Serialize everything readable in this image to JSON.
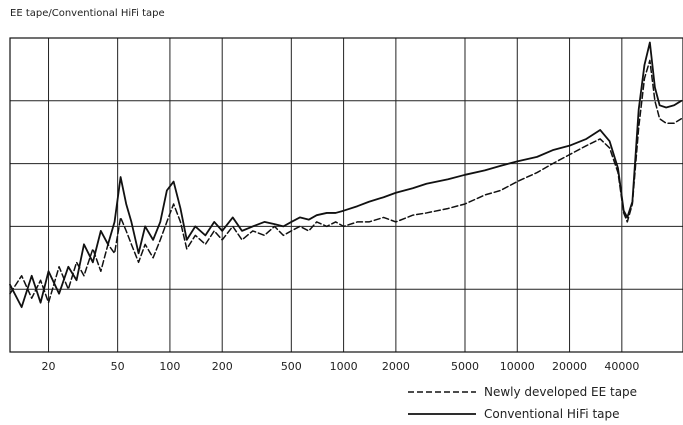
{
  "chart_data": {
    "type": "line",
    "title": "EE tape/Conventional HiFi tape",
    "xlabel": "",
    "ylabel": "",
    "x_scale": "log",
    "xlim": [
      12,
      90000
    ],
    "ylim": [
      0,
      7
    ],
    "grid": true,
    "x_tick_labels": [
      "20",
      "50",
      "100",
      "200",
      "500",
      "1000",
      "2000",
      "5000",
      "10000",
      "20000",
      "40000"
    ],
    "x_ticks": [
      20,
      50,
      100,
      200,
      500,
      1000,
      2000,
      5000,
      10000,
      20000,
      40000
    ],
    "legend_position": "bottom-right",
    "series": [
      {
        "name": "Newly developed EE tape",
        "style": "dashed",
        "color": "#111111",
        "points": [
          [
            12,
            1.3
          ],
          [
            14,
            1.7
          ],
          [
            16,
            1.2
          ],
          [
            18,
            1.6
          ],
          [
            20,
            1.1
          ],
          [
            23,
            1.9
          ],
          [
            26,
            1.4
          ],
          [
            29,
            2.0
          ],
          [
            32,
            1.7
          ],
          [
            36,
            2.3
          ],
          [
            40,
            1.8
          ],
          [
            44,
            2.4
          ],
          [
            48,
            2.2
          ],
          [
            52,
            3.0
          ],
          [
            56,
            2.7
          ],
          [
            60,
            2.4
          ],
          [
            66,
            2.0
          ],
          [
            72,
            2.4
          ],
          [
            80,
            2.1
          ],
          [
            88,
            2.5
          ],
          [
            96,
            2.9
          ],
          [
            105,
            3.3
          ],
          [
            115,
            2.9
          ],
          [
            125,
            2.3
          ],
          [
            140,
            2.6
          ],
          [
            160,
            2.4
          ],
          [
            180,
            2.7
          ],
          [
            200,
            2.5
          ],
          [
            230,
            2.8
          ],
          [
            260,
            2.5
          ],
          [
            300,
            2.7
          ],
          [
            350,
            2.6
          ],
          [
            400,
            2.8
          ],
          [
            450,
            2.6
          ],
          [
            500,
            2.7
          ],
          [
            560,
            2.8
          ],
          [
            630,
            2.7
          ],
          [
            700,
            2.9
          ],
          [
            800,
            2.8
          ],
          [
            900,
            2.9
          ],
          [
            1000,
            2.8
          ],
          [
            1200,
            2.9
          ],
          [
            1400,
            2.9
          ],
          [
            1700,
            3.0
          ],
          [
            2000,
            2.9
          ],
          [
            2500,
            3.05
          ],
          [
            3000,
            3.1
          ],
          [
            4000,
            3.2
          ],
          [
            5000,
            3.3
          ],
          [
            6500,
            3.5
          ],
          [
            8000,
            3.6
          ],
          [
            10000,
            3.8
          ],
          [
            13000,
            4.0
          ],
          [
            16000,
            4.2
          ],
          [
            20000,
            4.4
          ],
          [
            25000,
            4.6
          ],
          [
            30000,
            4.75
          ],
          [
            34000,
            4.55
          ],
          [
            38000,
            4.0
          ],
          [
            41000,
            3.1
          ],
          [
            43000,
            2.9
          ],
          [
            46000,
            3.3
          ],
          [
            50000,
            5.0
          ],
          [
            54000,
            6.1
          ],
          [
            58000,
            6.5
          ],
          [
            62000,
            5.6
          ],
          [
            66000,
            5.2
          ],
          [
            72000,
            5.1
          ],
          [
            80000,
            5.1
          ],
          [
            88000,
            5.2
          ]
        ]
      },
      {
        "name": "Conventional HiFi tape",
        "style": "solid",
        "color": "#111111",
        "points": [
          [
            12,
            1.5
          ],
          [
            14,
            1.0
          ],
          [
            16,
            1.7
          ],
          [
            18,
            1.1
          ],
          [
            20,
            1.8
          ],
          [
            23,
            1.3
          ],
          [
            26,
            1.9
          ],
          [
            29,
            1.6
          ],
          [
            32,
            2.4
          ],
          [
            36,
            2.0
          ],
          [
            40,
            2.7
          ],
          [
            44,
            2.4
          ],
          [
            48,
            2.9
          ],
          [
            52,
            3.9
          ],
          [
            56,
            3.3
          ],
          [
            60,
            2.9
          ],
          [
            66,
            2.2
          ],
          [
            72,
            2.8
          ],
          [
            80,
            2.5
          ],
          [
            88,
            2.9
          ],
          [
            96,
            3.6
          ],
          [
            105,
            3.8
          ],
          [
            115,
            3.2
          ],
          [
            125,
            2.5
          ],
          [
            140,
            2.8
          ],
          [
            160,
            2.6
          ],
          [
            180,
            2.9
          ],
          [
            200,
            2.7
          ],
          [
            230,
            3.0
          ],
          [
            260,
            2.7
          ],
          [
            300,
            2.8
          ],
          [
            350,
            2.9
          ],
          [
            400,
            2.85
          ],
          [
            450,
            2.8
          ],
          [
            500,
            2.9
          ],
          [
            560,
            3.0
          ],
          [
            630,
            2.95
          ],
          [
            700,
            3.05
          ],
          [
            800,
            3.1
          ],
          [
            900,
            3.1
          ],
          [
            1000,
            3.15
          ],
          [
            1200,
            3.25
          ],
          [
            1400,
            3.35
          ],
          [
            1700,
            3.45
          ],
          [
            2000,
            3.55
          ],
          [
            2500,
            3.65
          ],
          [
            3000,
            3.75
          ],
          [
            4000,
            3.85
          ],
          [
            5000,
            3.95
          ],
          [
            6500,
            4.05
          ],
          [
            8000,
            4.15
          ],
          [
            10000,
            4.25
          ],
          [
            13000,
            4.35
          ],
          [
            16000,
            4.5
          ],
          [
            20000,
            4.6
          ],
          [
            25000,
            4.75
          ],
          [
            30000,
            4.95
          ],
          [
            34000,
            4.7
          ],
          [
            38000,
            4.1
          ],
          [
            41000,
            3.15
          ],
          [
            43000,
            3.0
          ],
          [
            46000,
            3.35
          ],
          [
            50000,
            5.4
          ],
          [
            54000,
            6.4
          ],
          [
            58000,
            6.9
          ],
          [
            62000,
            5.9
          ],
          [
            66000,
            5.5
          ],
          [
            72000,
            5.45
          ],
          [
            80000,
            5.5
          ],
          [
            88000,
            5.6
          ]
        ]
      }
    ]
  }
}
